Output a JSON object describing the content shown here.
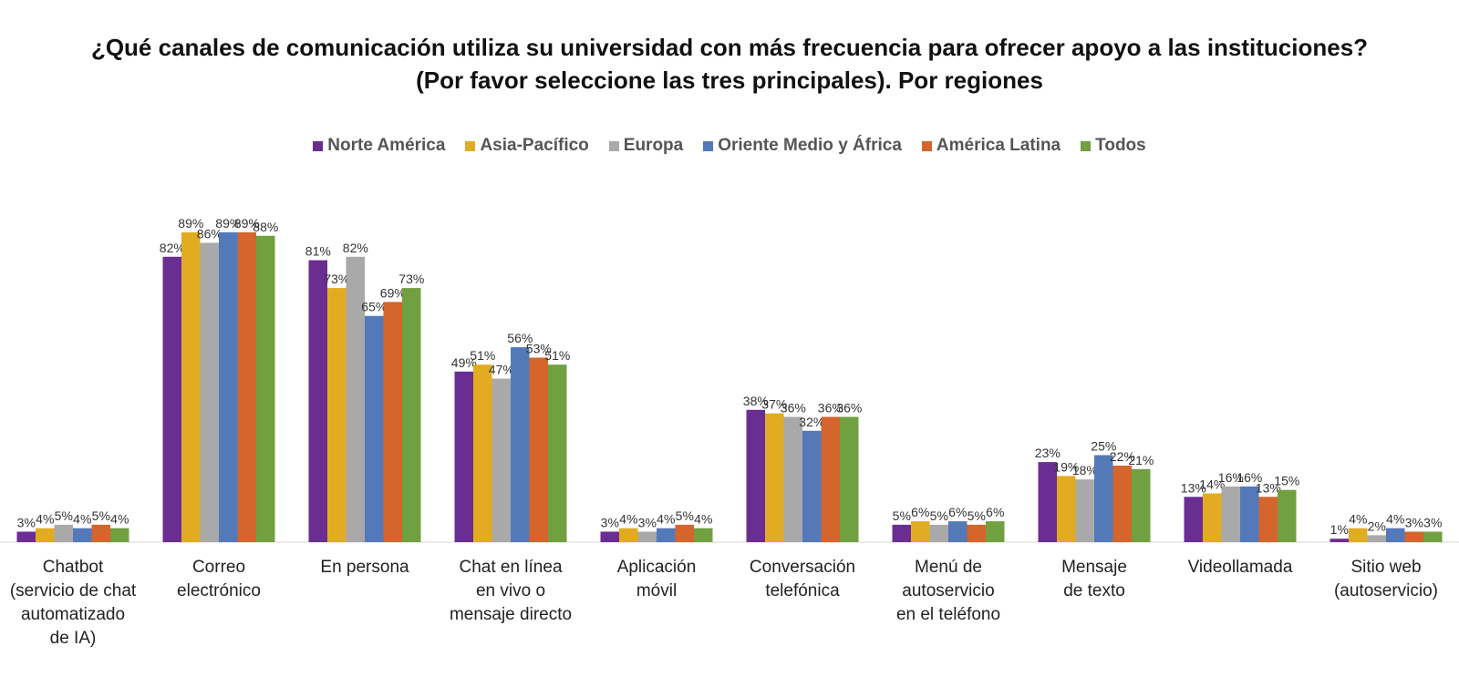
{
  "chart_data": {
    "type": "bar",
    "title_line1": "¿Qué canales de comunicación utiliza su universidad con más frecuencia para ofrecer apoyo a las instituciones?",
    "title_line2": "(Por favor seleccione las tres principales). Por regiones",
    "categories": [
      [
        "Chatbot",
        "(servicio de chat",
        "automatizado",
        "de IA)"
      ],
      [
        "Correo",
        "electrónico"
      ],
      [
        "En persona"
      ],
      [
        "Chat en línea",
        "en vivo o",
        "mensaje directo"
      ],
      [
        "Aplicación",
        "móvil"
      ],
      [
        "Conversación",
        "telefónica"
      ],
      [
        "Menú de",
        "autoservicio",
        "en el teléfono"
      ],
      [
        "Mensaje",
        "de texto"
      ],
      [
        "Videollamada"
      ],
      [
        "Sitio web",
        "(autoservicio)"
      ]
    ],
    "series": [
      {
        "name": "Norte América",
        "color": "#6a2d91",
        "values": [
          3,
          82,
          81,
          49,
          3,
          38,
          5,
          23,
          13,
          1
        ]
      },
      {
        "name": "Asia-Pacífico",
        "color": "#e2ac22",
        "values": [
          4,
          89,
          73,
          51,
          4,
          37,
          6,
          19,
          14,
          4
        ]
      },
      {
        "name": "Europa",
        "color": "#a9a9a9",
        "values": [
          5,
          86,
          82,
          47,
          3,
          36,
          5,
          18,
          16,
          2
        ]
      },
      {
        "name": "Oriente Medio y África",
        "color": "#5479b8",
        "values": [
          4,
          89,
          65,
          56,
          4,
          32,
          6,
          25,
          16,
          4
        ]
      },
      {
        "name": "América Latina",
        "color": "#d4652d",
        "values": [
          5,
          89,
          69,
          53,
          5,
          36,
          5,
          22,
          13,
          3
        ]
      },
      {
        "name": "Todos",
        "color": "#70a040",
        "values": [
          4,
          88,
          73,
          51,
          4,
          36,
          6,
          21,
          15,
          3
        ]
      }
    ],
    "value_suffix": "%",
    "ylim": [
      0,
      100
    ],
    "grid": false,
    "legend_position": "top"
  }
}
